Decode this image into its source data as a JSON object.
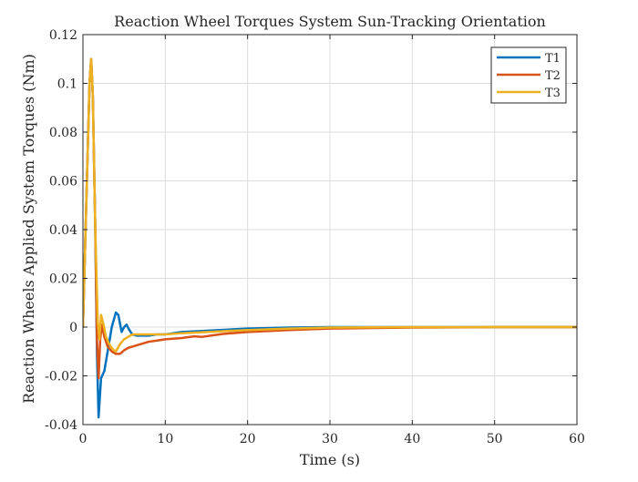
{
  "chart_data": {
    "type": "line",
    "title": "Reaction Wheel Torques System Sun-Tracking Orientation",
    "xlabel": "Time (s)",
    "ylabel": "Reaction Wheels Applied System Torques (Nm)",
    "xlim": [
      0,
      60
    ],
    "ylim": [
      -0.04,
      0.12
    ],
    "xticks": [
      0,
      10,
      20,
      30,
      40,
      50,
      60
    ],
    "xtick_labels": [
      "0",
      "10",
      "20",
      "30",
      "40",
      "50",
      "60"
    ],
    "yticks": [
      -0.04,
      -0.02,
      0,
      0.02,
      0.04,
      0.06,
      0.08,
      0.1,
      0.12
    ],
    "ytick_labels": [
      "-0.04",
      "-0.02",
      "0",
      "0.02",
      "0.04",
      "0.06",
      "0.08",
      "0.1",
      "0.12"
    ],
    "grid": true,
    "legend_position": "top-right",
    "series": [
      {
        "name": "T1",
        "color": "#0072BD",
        "x": [
          0,
          0.4,
          0.8,
          1.0,
          1.2,
          1.5,
          1.7,
          1.9,
          2.2,
          2.6,
          3.0,
          3.5,
          4.0,
          4.3,
          4.7,
          5.0,
          5.3,
          5.6,
          6.0,
          6.5,
          7,
          8,
          9,
          10,
          12,
          15,
          20,
          25,
          30,
          40,
          50,
          60
        ],
        "y": [
          0,
          0.05,
          0.1,
          0.11,
          0.095,
          0.04,
          -0.01,
          -0.037,
          -0.021,
          -0.018,
          -0.01,
          0.0,
          0.006,
          0.005,
          -0.002,
          0.0,
          0.001,
          -0.001,
          -0.003,
          -0.0035,
          -0.0035,
          -0.0035,
          -0.003,
          -0.003,
          -0.002,
          -0.0015,
          -0.0006,
          -0.0002,
          0,
          0,
          0,
          0
        ]
      },
      {
        "name": "T2",
        "color": "#D95319",
        "x": [
          0,
          0.4,
          0.8,
          1.0,
          1.2,
          1.5,
          1.7,
          1.9,
          2.1,
          2.3,
          2.6,
          3.0,
          3.5,
          4.0,
          4.5,
          5.0,
          5.5,
          6.0,
          7,
          8,
          9,
          10,
          12,
          13.5,
          14.5,
          15.5,
          17,
          20,
          25,
          30,
          40,
          50,
          60
        ],
        "y": [
          0,
          0.05,
          0.1,
          0.11,
          0.095,
          0.04,
          -0.005,
          -0.021,
          -0.005,
          0.001,
          -0.004,
          -0.008,
          -0.01,
          -0.011,
          -0.011,
          -0.0095,
          -0.0085,
          -0.008,
          -0.007,
          -0.006,
          -0.0055,
          -0.005,
          -0.0045,
          -0.0038,
          -0.004,
          -0.0035,
          -0.0028,
          -0.002,
          -0.0012,
          -0.0006,
          -0.0002,
          0,
          0
        ]
      },
      {
        "name": "T3",
        "color": "#EDB120",
        "x": [
          0,
          0.4,
          0.8,
          1.0,
          1.2,
          1.5,
          1.8,
          2.0,
          2.2,
          2.5,
          2.8,
          3.2,
          3.6,
          4.0,
          4.5,
          5.0,
          5.5,
          6.0,
          7,
          8,
          10,
          12,
          15,
          20,
          25,
          30,
          40,
          50,
          60
        ],
        "y": [
          0,
          0.05,
          0.1,
          0.11,
          0.095,
          0.04,
          0.002,
          -0.005,
          0.005,
          0.001,
          -0.004,
          -0.007,
          -0.009,
          -0.01,
          -0.007,
          -0.005,
          -0.004,
          -0.003,
          -0.003,
          -0.003,
          -0.003,
          -0.0025,
          -0.002,
          -0.0012,
          -0.0006,
          -0.0002,
          0,
          0,
          0
        ]
      }
    ]
  }
}
